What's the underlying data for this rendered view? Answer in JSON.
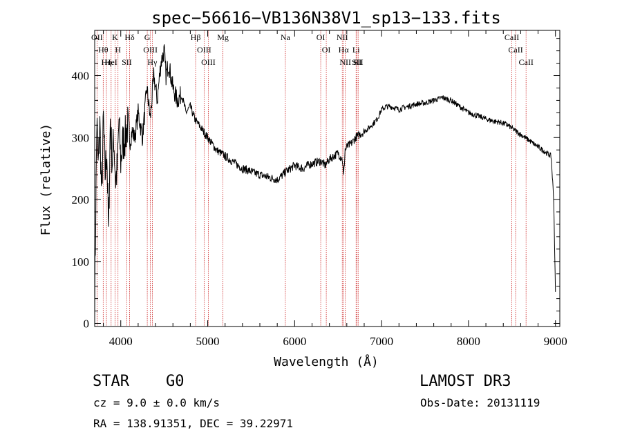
{
  "chart_data": {
    "type": "line",
    "title": "spec−56616−VB136N38V1_sp13−133.fits",
    "xlabel": "Wavelength (Å)",
    "ylabel": "Flux (relative)",
    "xlim": [
      3700,
      9050
    ],
    "ylim": [
      -5,
      473
    ],
    "xticks": [
      {
        "value": 4000,
        "label": "4000"
      },
      {
        "value": 5000,
        "label": "5000"
      },
      {
        "value": 6000,
        "label": "6000"
      },
      {
        "value": 7000,
        "label": "7000"
      },
      {
        "value": 8000,
        "label": "8000"
      },
      {
        "value": 9000,
        "label": "9000"
      }
    ],
    "yticks": [
      {
        "value": 0,
        "label": "0"
      },
      {
        "value": 100,
        "label": "100"
      },
      {
        "value": 200,
        "label": "200"
      },
      {
        "value": 300,
        "label": "300"
      },
      {
        "value": 400,
        "label": "400"
      }
    ],
    "series": [
      {
        "name": "flux",
        "x": [
          3700,
          3710,
          3725,
          3740,
          3760,
          3780,
          3800,
          3820,
          3840,
          3860,
          3880,
          3900,
          3920,
          3940,
          3960,
          3980,
          4000,
          4020,
          4050,
          4080,
          4100,
          4130,
          4160,
          4200,
          4250,
          4300,
          4340,
          4380,
          4420,
          4460,
          4500,
          4520,
          4550,
          4600,
          4650,
          4700,
          4750,
          4800,
          4850,
          4900,
          4950,
          5000,
          5050,
          5100,
          5150,
          5200,
          5250,
          5300,
          5350,
          5400,
          5450,
          5500,
          5550,
          5600,
          5650,
          5700,
          5750,
          5800,
          5850,
          5900,
          5950,
          6000,
          6050,
          6100,
          6150,
          6200,
          6250,
          6300,
          6350,
          6400,
          6450,
          6500,
          6550,
          6563,
          6580,
          6600,
          6650,
          6700,
          6750,
          6800,
          6850,
          6900,
          6950,
          7000,
          7050,
          7100,
          7150,
          7200,
          7250,
          7300,
          7350,
          7400,
          7450,
          7500,
          7550,
          7600,
          7650,
          7700,
          7750,
          7800,
          7850,
          7900,
          7950,
          8000,
          8050,
          8100,
          8150,
          8200,
          8250,
          8300,
          8350,
          8400,
          8450,
          8500,
          8550,
          8600,
          8650,
          8700,
          8750,
          8800,
          8850,
          8900,
          8950,
          8980,
          9000
        ],
        "y": [
          30,
          150,
          330,
          250,
          320,
          200,
          330,
          240,
          280,
          140,
          330,
          260,
          300,
          230,
          250,
          330,
          260,
          290,
          300,
          320,
          290,
          310,
          300,
          340,
          300,
          380,
          330,
          400,
          360,
          420,
          440,
          400,
          420,
          380,
          360,
          370,
          340,
          350,
          330,
          320,
          310,
          300,
          290,
          280,
          275,
          270,
          265,
          260,
          255,
          250,
          248,
          245,
          242,
          240,
          238,
          236,
          234,
          232,
          238,
          245,
          250,
          255,
          252,
          250,
          255,
          258,
          260,
          262,
          255,
          265,
          270,
          275,
          265,
          235,
          280,
          285,
          290,
          300,
          305,
          310,
          315,
          322,
          330,
          345,
          350,
          350,
          348,
          345,
          348,
          350,
          352,
          354,
          355,
          356,
          358,
          360,
          362,
          365,
          362,
          360,
          355,
          350,
          345,
          340,
          338,
          335,
          333,
          330,
          328,
          326,
          325,
          323,
          320,
          315,
          310,
          305,
          300,
          295,
          290,
          285,
          280,
          275,
          270,
          200,
          50
        ]
      }
    ],
    "lines": [
      {
        "label": "O II",
        "x": 3727
      },
      {
        "label": "Hθ",
        "x": 3798
      },
      {
        "label": "Hη",
        "x": 3835
      },
      {
        "label": "He I",
        "x": 3889
      },
      {
        "label": "K",
        "x": 3934
      },
      {
        "label": "H",
        "x": 3968
      },
      {
        "label": "S II",
        "x": 4069
      },
      {
        "label": "Hδ",
        "x": 4102
      },
      {
        "label": "G",
        "x": 4305
      },
      {
        "label": "O III",
        "x": 4341
      },
      {
        "label": "Hγ",
        "x": 4363
      },
      {
        "label": "Hβ",
        "x": 4861
      },
      {
        "label": "O III",
        "x": 4959
      },
      {
        "label": "O III",
        "x": 5007
      },
      {
        "label": "Mg",
        "x": 5175
      },
      {
        "label": "Na",
        "x": 5893
      },
      {
        "label": "O I",
        "x": 6300
      },
      {
        "label": "O I",
        "x": 6364
      },
      {
        "label": "N II",
        "x": 6548
      },
      {
        "label": "Hα",
        "x": 6563
      },
      {
        "label": "N II",
        "x": 6583
      },
      {
        "label": "Li",
        "x": 6707
      },
      {
        "label": "S II",
        "x": 6716
      },
      {
        "label": "S II",
        "x": 6731
      },
      {
        "label": "Ca II",
        "x": 8498
      },
      {
        "label": "Ca II",
        "x": 8542
      },
      {
        "label": "Ca II",
        "x": 8662
      }
    ],
    "grid": false,
    "legend": "none"
  },
  "info": {
    "classification": "STAR",
    "subclass": "G0",
    "survey": "LAMOST DR3",
    "redshift": "cz = 9.0 ± 0.0 km/s",
    "obs_date": "Obs-Date: 20131119",
    "coords": "RA = 138.91351, DEC =  39.22971"
  },
  "colors": {
    "spectrum": "#000000",
    "line_markers": "#cc2222"
  }
}
